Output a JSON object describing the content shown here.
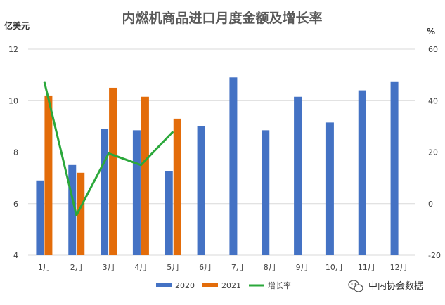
{
  "chart_data": {
    "type": "bar",
    "title": "内燃机商品进口月度金额及增长率",
    "left_unit": "亿美元",
    "right_unit": "%",
    "categories": [
      "1月",
      "2月",
      "3月",
      "4月",
      "5月",
      "6月",
      "7月",
      "8月",
      "9月",
      "10月",
      "11月",
      "12月"
    ],
    "y_left_ticks": [
      "4",
      "6",
      "8",
      "10",
      "12"
    ],
    "y_right_ticks": [
      "-20",
      "0",
      "20",
      "40",
      "60"
    ],
    "ylim_left": [
      4,
      12
    ],
    "ylim_right": [
      -20,
      60
    ],
    "grid": true,
    "legend_position": "bottom",
    "series": [
      {
        "name": "2020",
        "kind": "bar",
        "axis": "left",
        "color": "#4472C4",
        "values": [
          6.9,
          7.5,
          8.9,
          8.85,
          7.25,
          9.0,
          10.9,
          8.85,
          10.15,
          9.15,
          10.4,
          10.75
        ]
      },
      {
        "name": "2021",
        "kind": "bar",
        "axis": "left",
        "color": "#E36C0A",
        "values": [
          10.2,
          7.2,
          10.5,
          10.15,
          9.3,
          null,
          null,
          null,
          null,
          null,
          null,
          null
        ]
      },
      {
        "name": "增长率",
        "kind": "line",
        "axis": "right",
        "color": "#2BA83B",
        "values": [
          47.5,
          -4.5,
          19.5,
          15,
          28,
          null,
          null,
          null,
          null,
          null,
          null,
          null
        ]
      }
    ]
  },
  "watermark": {
    "text": "中内协会数据"
  }
}
